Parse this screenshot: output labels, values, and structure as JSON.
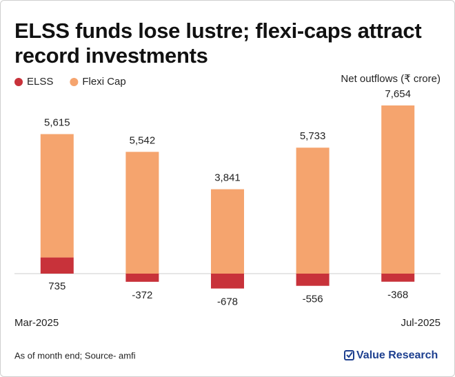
{
  "chart_data": {
    "type": "stacked-bar",
    "title": "ELSS funds lose lustre; flexi-caps attract record investments",
    "annotation": "Net outflows (₹ crore)",
    "categories": [
      "Mar-2025",
      null,
      null,
      null,
      "Jul-2025"
    ],
    "series": [
      {
        "name": "ELSS",
        "color": "#c8323a",
        "values": [
          735,
          -372,
          -678,
          -556,
          -368
        ]
      },
      {
        "name": "Flexi Cap",
        "color": "#f5a46e",
        "values": [
          5615,
          5542,
          3841,
          5733,
          7654
        ],
        "value_labels": [
          "5,615",
          "5,542",
          "3,841",
          "5,733",
          "7,654"
        ]
      }
    ],
    "legend": "top-left",
    "footnote": "As of month end; Source- amfi",
    "brand": "Value Research"
  }
}
